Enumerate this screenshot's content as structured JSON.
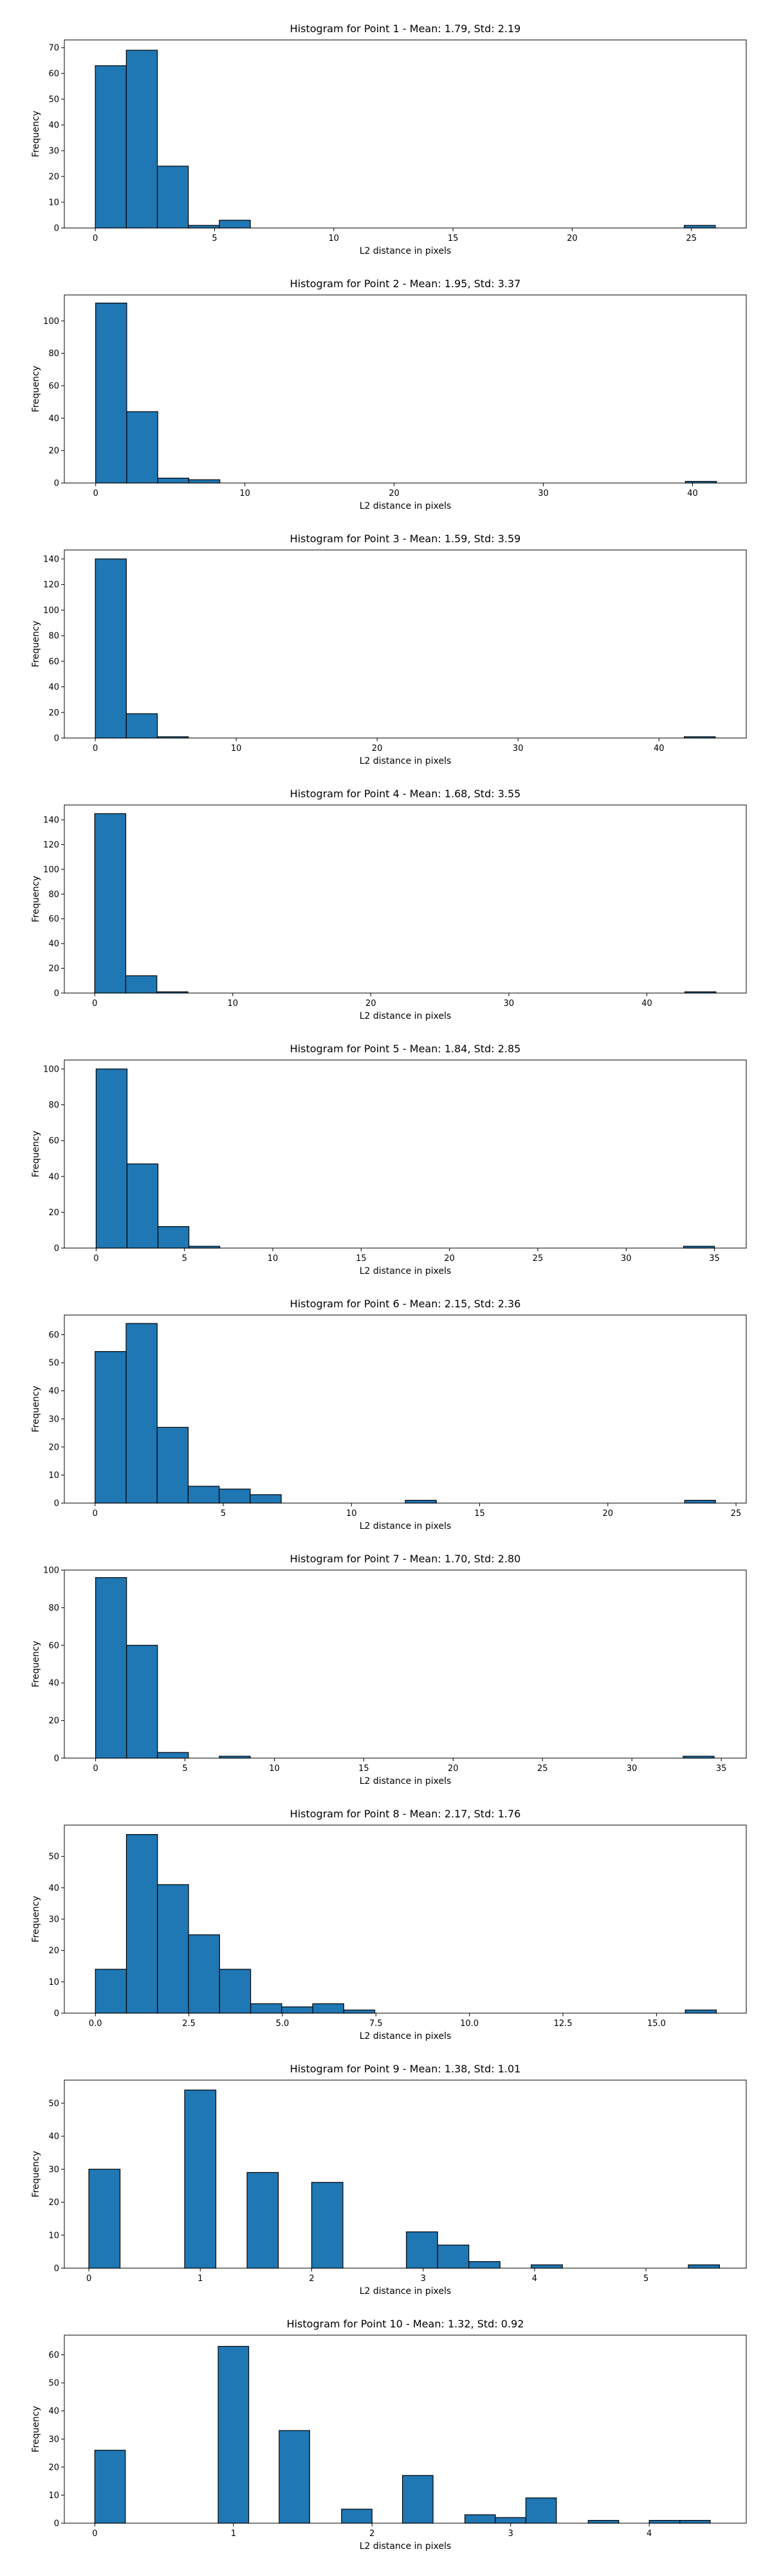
{
  "chart_data": [
    {
      "type": "bar",
      "title": "Histogram for Point 1 - Mean: 1.79, Std: 2.19",
      "xlabel": "L2 distance in pixels",
      "ylabel": "Frequency",
      "xlim": [
        -1.3,
        27.3
      ],
      "ylim": [
        0,
        73
      ],
      "xticks": [
        0,
        5,
        10,
        15,
        20,
        25
      ],
      "yticks": [
        0,
        10,
        20,
        30,
        40,
        50,
        60,
        70
      ],
      "bins": [
        {
          "x0": 0.0,
          "x1": 1.3,
          "count": 63
        },
        {
          "x0": 1.3,
          "x1": 2.6,
          "count": 69
        },
        {
          "x0": 2.6,
          "x1": 3.9,
          "count": 24
        },
        {
          "x0": 3.9,
          "x1": 5.2,
          "count": 1
        },
        {
          "x0": 5.2,
          "x1": 6.5,
          "count": 3
        },
        {
          "x0": 24.7,
          "x1": 26.0,
          "count": 1
        }
      ]
    },
    {
      "type": "bar",
      "title": "Histogram for Point 2 - Mean: 1.95, Std: 3.37",
      "xlabel": "L2 distance in pixels",
      "ylabel": "Frequency",
      "xlim": [
        -2.1,
        43.6
      ],
      "ylim": [
        0,
        116
      ],
      "xticks": [
        0,
        10,
        20,
        30,
        40
      ],
      "yticks": [
        0,
        20,
        40,
        60,
        80,
        100
      ],
      "bins": [
        {
          "x0": 0.0,
          "x1": 2.08,
          "count": 111
        },
        {
          "x0": 2.08,
          "x1": 4.16,
          "count": 44
        },
        {
          "x0": 4.16,
          "x1": 6.24,
          "count": 3
        },
        {
          "x0": 6.24,
          "x1": 8.32,
          "count": 2
        },
        {
          "x0": 39.52,
          "x1": 41.6,
          "count": 1
        }
      ]
    },
    {
      "type": "bar",
      "title": "Histogram for Point 3 - Mean: 1.59, Std: 3.59",
      "xlabel": "L2 distance in pixels",
      "ylabel": "Frequency",
      "xlim": [
        -2.2,
        46.2
      ],
      "ylim": [
        0,
        147
      ],
      "xticks": [
        0,
        10,
        20,
        30,
        40
      ],
      "yticks": [
        0,
        20,
        40,
        60,
        80,
        100,
        120,
        140
      ],
      "bins": [
        {
          "x0": 0.0,
          "x1": 2.2,
          "count": 140
        },
        {
          "x0": 2.2,
          "x1": 4.4,
          "count": 19
        },
        {
          "x0": 4.4,
          "x1": 6.6,
          "count": 1
        },
        {
          "x0": 41.8,
          "x1": 44.0,
          "count": 1
        }
      ]
    },
    {
      "type": "bar",
      "title": "Histogram for Point 4 - Mean: 1.68, Std: 3.55",
      "xlabel": "L2 distance in pixels",
      "ylabel": "Frequency",
      "xlim": [
        -2.2,
        47.2
      ],
      "ylim": [
        0,
        152
      ],
      "xticks": [
        0,
        10,
        20,
        30,
        40
      ],
      "yticks": [
        0,
        20,
        40,
        60,
        80,
        100,
        120,
        140
      ],
      "bins": [
        {
          "x0": 0.0,
          "x1": 2.25,
          "count": 145
        },
        {
          "x0": 2.25,
          "x1": 4.5,
          "count": 14
        },
        {
          "x0": 4.5,
          "x1": 6.75,
          "count": 1
        },
        {
          "x0": 42.75,
          "x1": 45.0,
          "count": 1
        }
      ]
    },
    {
      "type": "bar",
      "title": "Histogram for Point 5 - Mean: 1.84, Std: 2.85",
      "xlabel": "L2 distance in pixels",
      "ylabel": "Frequency",
      "xlim": [
        -1.8,
        36.8
      ],
      "ylim": [
        0,
        105
      ],
      "xticks": [
        0,
        5,
        10,
        15,
        20,
        25,
        30,
        35
      ],
      "yticks": [
        0,
        20,
        40,
        60,
        80,
        100
      ],
      "bins": [
        {
          "x0": 0.0,
          "x1": 1.75,
          "count": 100
        },
        {
          "x0": 1.75,
          "x1": 3.5,
          "count": 47
        },
        {
          "x0": 3.5,
          "x1": 5.25,
          "count": 12
        },
        {
          "x0": 5.25,
          "x1": 7.0,
          "count": 1
        },
        {
          "x0": 33.25,
          "x1": 35.0,
          "count": 1
        }
      ]
    },
    {
      "type": "bar",
      "title": "Histogram for Point 6 - Mean: 2.15, Std: 2.36",
      "xlabel": "L2 distance in pixels",
      "ylabel": "Frequency",
      "xlim": [
        -1.2,
        25.4
      ],
      "ylim": [
        0,
        67
      ],
      "xticks": [
        0,
        5,
        10,
        15,
        20,
        25
      ],
      "yticks": [
        0,
        10,
        20,
        30,
        40,
        50,
        60
      ],
      "bins": [
        {
          "x0": 0.0,
          "x1": 1.21,
          "count": 54
        },
        {
          "x0": 1.21,
          "x1": 2.42,
          "count": 64
        },
        {
          "x0": 2.42,
          "x1": 3.63,
          "count": 27
        },
        {
          "x0": 3.63,
          "x1": 4.84,
          "count": 6
        },
        {
          "x0": 4.84,
          "x1": 6.05,
          "count": 5
        },
        {
          "x0": 6.05,
          "x1": 7.26,
          "count": 3
        },
        {
          "x0": 12.1,
          "x1": 13.31,
          "count": 1
        },
        {
          "x0": 23.0,
          "x1": 24.2,
          "count": 1
        }
      ]
    },
    {
      "type": "bar",
      "title": "Histogram for Point 7 - Mean: 1.70, Std: 2.80",
      "xlabel": "L2 distance in pixels",
      "ylabel": "Frequency",
      "xlim": [
        -1.75,
        36.4
      ],
      "ylim": [
        0,
        100
      ],
      "xticks": [
        0,
        5,
        10,
        15,
        20,
        25,
        30,
        35
      ],
      "yticks": [
        0,
        20,
        40,
        60,
        80,
        100
      ],
      "bins": [
        {
          "x0": 0.0,
          "x1": 1.73,
          "count": 96
        },
        {
          "x0": 1.73,
          "x1": 3.46,
          "count": 60
        },
        {
          "x0": 3.46,
          "x1": 5.19,
          "count": 3
        },
        {
          "x0": 6.92,
          "x1": 8.65,
          "count": 1
        },
        {
          "x0": 32.87,
          "x1": 34.6,
          "count": 1
        }
      ]
    },
    {
      "type": "bar",
      "title": "Histogram for Point 8 - Mean: 2.17, Std: 1.76",
      "xlabel": "L2 distance in pixels",
      "ylabel": "Frequency",
      "xlim": [
        -0.83,
        17.4
      ],
      "ylim": [
        0,
        60
      ],
      "xticks": [
        0.0,
        2.5,
        5.0,
        7.5,
        10.0,
        12.5,
        15.0
      ],
      "xtick_labels": [
        "0.0",
        "2.5",
        "5.0",
        "7.5",
        "10.0",
        "12.5",
        "15.0"
      ],
      "yticks": [
        0,
        10,
        20,
        30,
        40,
        50
      ],
      "bins": [
        {
          "x0": 0.0,
          "x1": 0.83,
          "count": 14
        },
        {
          "x0": 0.83,
          "x1": 1.66,
          "count": 57
        },
        {
          "x0": 1.66,
          "x1": 2.49,
          "count": 41
        },
        {
          "x0": 2.49,
          "x1": 3.32,
          "count": 25
        },
        {
          "x0": 3.32,
          "x1": 4.15,
          "count": 14
        },
        {
          "x0": 4.15,
          "x1": 4.98,
          "count": 3
        },
        {
          "x0": 4.98,
          "x1": 5.81,
          "count": 2
        },
        {
          "x0": 5.81,
          "x1": 6.64,
          "count": 3
        },
        {
          "x0": 6.64,
          "x1": 7.47,
          "count": 1
        },
        {
          "x0": 15.77,
          "x1": 16.6,
          "count": 1
        }
      ]
    },
    {
      "type": "bar",
      "title": "Histogram for Point 9 - Mean: 1.38, Std: 1.01",
      "xlabel": "L2 distance in pixels",
      "ylabel": "Frequency",
      "xlim": [
        -0.22,
        5.9
      ],
      "ylim": [
        0,
        57
      ],
      "xticks": [
        0,
        1,
        2,
        3,
        4,
        5
      ],
      "yticks": [
        0,
        10,
        20,
        30,
        40,
        50
      ],
      "bins": [
        {
          "x0": 0.0,
          "x1": 0.28,
          "count": 30
        },
        {
          "x0": 0.86,
          "x1": 1.14,
          "count": 54
        },
        {
          "x0": 1.42,
          "x1": 1.7,
          "count": 29
        },
        {
          "x0": 2.0,
          "x1": 2.28,
          "count": 26
        },
        {
          "x0": 2.85,
          "x1": 3.13,
          "count": 11
        },
        {
          "x0": 3.13,
          "x1": 3.41,
          "count": 7
        },
        {
          "x0": 3.41,
          "x1": 3.69,
          "count": 2
        },
        {
          "x0": 3.97,
          "x1": 4.25,
          "count": 1
        },
        {
          "x0": 5.38,
          "x1": 5.66,
          "count": 1
        }
      ]
    },
    {
      "type": "bar",
      "title": "Histogram for Point 10 - Mean: 1.32, Std: 0.92",
      "xlabel": "L2 distance in pixels",
      "ylabel": "Frequency",
      "xlim": [
        -0.22,
        4.7
      ],
      "ylim": [
        0,
        67
      ],
      "xticks": [
        0,
        1,
        2,
        3,
        4
      ],
      "yticks": [
        0,
        10,
        20,
        30,
        40,
        50,
        60
      ],
      "bins": [
        {
          "x0": 0.0,
          "x1": 0.22,
          "count": 26
        },
        {
          "x0": 0.89,
          "x1": 1.11,
          "count": 63
        },
        {
          "x0": 1.33,
          "x1": 1.55,
          "count": 33
        },
        {
          "x0": 1.78,
          "x1": 2.0,
          "count": 5
        },
        {
          "x0": 2.22,
          "x1": 2.44,
          "count": 17
        },
        {
          "x0": 2.67,
          "x1": 2.89,
          "count": 3
        },
        {
          "x0": 2.89,
          "x1": 3.11,
          "count": 2
        },
        {
          "x0": 3.11,
          "x1": 3.33,
          "count": 9
        },
        {
          "x0": 3.56,
          "x1": 3.78,
          "count": 1
        },
        {
          "x0": 4.0,
          "x1": 4.22,
          "count": 1
        },
        {
          "x0": 4.22,
          "x1": 4.44,
          "count": 1
        }
      ]
    }
  ]
}
